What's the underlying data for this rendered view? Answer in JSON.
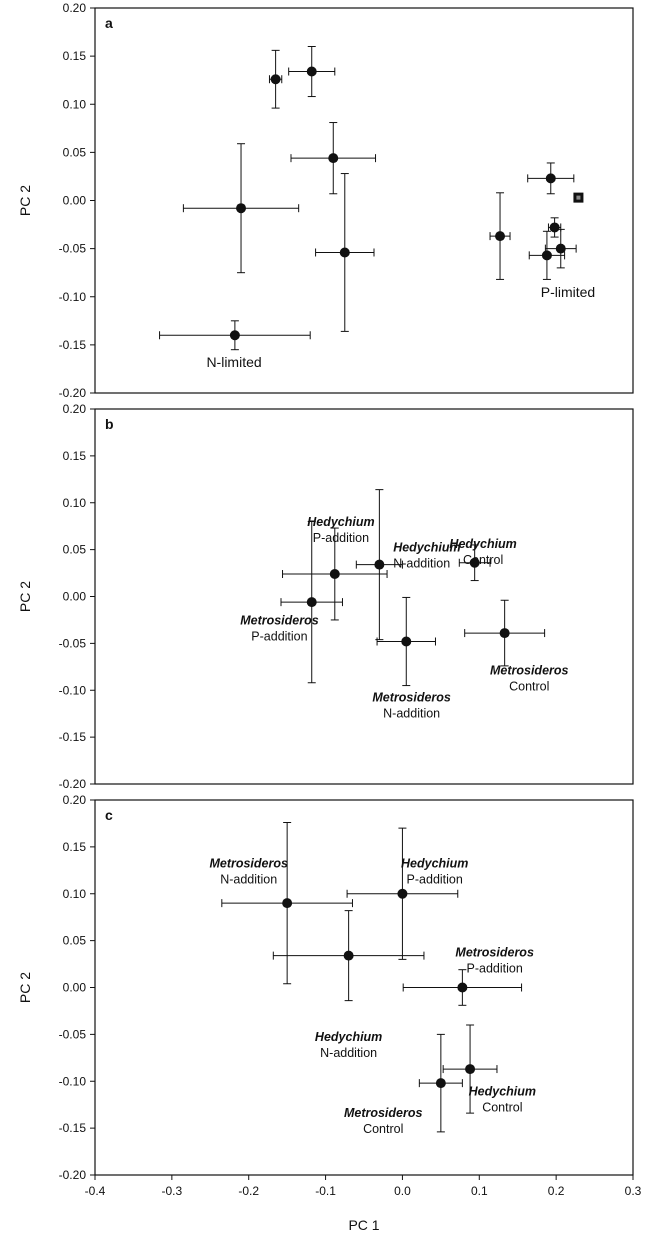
{
  "chart_data": [
    {
      "type": "scatter",
      "panel": "a",
      "xlim": [
        -0.4,
        0.3
      ],
      "ylim": [
        -0.2,
        0.2
      ],
      "yticks": [
        "0.20",
        "0.15",
        "0.10",
        "0.05",
        "0.00",
        "-0.05",
        "-0.10",
        "-0.15",
        "-0.20"
      ],
      "ylabel": "PC 2",
      "grid": false,
      "points": [
        {
          "x": -0.165,
          "y": 0.126,
          "xerr": 0.008,
          "yerr": 0.03
        },
        {
          "x": -0.118,
          "y": 0.134,
          "xerr": 0.03,
          "yerr": 0.026
        },
        {
          "x": -0.09,
          "y": 0.044,
          "xerr": 0.055,
          "yerr": 0.037
        },
        {
          "x": -0.21,
          "y": -0.008,
          "xerr": 0.075,
          "yerr": 0.067
        },
        {
          "x": -0.075,
          "y": -0.054,
          "xerr": 0.038,
          "yerr": 0.082
        },
        {
          "x": -0.218,
          "y": -0.14,
          "xerr": 0.098,
          "yerr": 0.015
        },
        {
          "x": 0.127,
          "y": -0.037,
          "xerr": 0.013,
          "yerr": 0.045
        },
        {
          "x": 0.193,
          "y": 0.023,
          "xerr": 0.03,
          "yerr": 0.016
        },
        {
          "x": 0.198,
          "y": -0.028,
          "xerr": 0.008,
          "yerr": 0.01
        },
        {
          "x": 0.188,
          "y": -0.057,
          "xerr": 0.023,
          "yerr": 0.025
        },
        {
          "x": 0.206,
          "y": -0.05,
          "xerr": 0.02,
          "yerr": 0.02
        },
        {
          "x": 0.229,
          "y": 0.003,
          "xerr": 0,
          "yerr": 0,
          "marker": "square"
        }
      ],
      "annotations": [
        {
          "text": "N-limited",
          "x": -0.255,
          "y": -0.173
        },
        {
          "text": "P-limited",
          "x": 0.18,
          "y": -0.1
        }
      ]
    },
    {
      "type": "scatter",
      "panel": "b",
      "xlim": [
        -0.4,
        0.3
      ],
      "ylim": [
        -0.2,
        0.2
      ],
      "yticks": [
        "0.20",
        "0.15",
        "0.10",
        "0.05",
        "0.00",
        "-0.05",
        "-0.10",
        "-0.15",
        "-0.20"
      ],
      "ylabel": "PC 2",
      "grid": false,
      "points": [
        {
          "x": -0.118,
          "y": -0.006,
          "xerr": 0.04,
          "yerr": 0.086
        },
        {
          "x": -0.088,
          "y": 0.024,
          "xerr": 0.068,
          "yerr": 0.049
        },
        {
          "x": -0.03,
          "y": 0.034,
          "xerr": 0.03,
          "yerr": 0.08
        },
        {
          "x": 0.094,
          "y": 0.036,
          "xerr": 0.02,
          "yerr": 0.019
        },
        {
          "x": 0.005,
          "y": -0.048,
          "xerr": 0.038,
          "yerr": 0.047
        },
        {
          "x": 0.133,
          "y": -0.039,
          "xerr": 0.052,
          "yerr": 0.035
        }
      ],
      "annotations": [
        {
          "species": "Hedychium",
          "treatment": "P-addition",
          "x": -0.08,
          "y": 0.075,
          "anchor": "middle"
        },
        {
          "species": "Hedychium",
          "treatment": "N-addition",
          "x": -0.012,
          "y": 0.048,
          "anchor": "start"
        },
        {
          "species": "Hedychium",
          "treatment": "Control",
          "x": 0.105,
          "y": 0.052,
          "anchor": "middle"
        },
        {
          "species": "Metrosideros",
          "treatment": "P-addition",
          "x": -0.16,
          "y": -0.03,
          "anchor": "middle"
        },
        {
          "species": "Metrosideros",
          "treatment": "N-addition",
          "x": 0.012,
          "y": -0.112,
          "anchor": "middle"
        },
        {
          "species": "Metrosideros",
          "treatment": "Control",
          "x": 0.165,
          "y": -0.083,
          "anchor": "middle"
        }
      ]
    },
    {
      "type": "scatter",
      "panel": "c",
      "xlim": [
        -0.4,
        0.3
      ],
      "ylim": [
        -0.2,
        0.2
      ],
      "xticks": [
        "-0.4",
        "-0.3",
        "-0.2",
        "-0.1",
        "0.0",
        "0.1",
        "0.2",
        "0.3"
      ],
      "yticks": [
        "0.20",
        "0.15",
        "0.10",
        "0.05",
        "0.00",
        "-0.05",
        "-0.10",
        "-0.15",
        "-0.20"
      ],
      "xlabel": "PC 1",
      "ylabel": "PC 2",
      "grid": false,
      "points": [
        {
          "x": -0.15,
          "y": 0.09,
          "xerr": 0.085,
          "yerr": 0.086
        },
        {
          "x": -0.07,
          "y": 0.034,
          "xerr": 0.098,
          "yerr": 0.048
        },
        {
          "x": 0.0,
          "y": 0.1,
          "xerr": 0.072,
          "yerr": 0.07
        },
        {
          "x": 0.078,
          "y": 0.0,
          "xerr": 0.077,
          "yerr": 0.019
        },
        {
          "x": 0.05,
          "y": -0.102,
          "xerr": 0.028,
          "yerr": 0.052
        },
        {
          "x": 0.088,
          "y": -0.087,
          "xerr": 0.035,
          "yerr": 0.047
        }
      ],
      "annotations": [
        {
          "species": "Metrosideros",
          "treatment": "N-addition",
          "x": -0.2,
          "y": 0.128,
          "anchor": "middle"
        },
        {
          "species": "Hedychium",
          "treatment": "P-addition",
          "x": 0.042,
          "y": 0.128,
          "anchor": "middle"
        },
        {
          "species": "Metrosideros",
          "treatment": "P-addition",
          "x": 0.12,
          "y": 0.033,
          "anchor": "middle"
        },
        {
          "species": "Hedychium",
          "treatment": "N-addition",
          "x": -0.07,
          "y": -0.057,
          "anchor": "middle"
        },
        {
          "species": "Hedychium",
          "treatment": "Control",
          "x": 0.13,
          "y": -0.115,
          "anchor": "middle"
        },
        {
          "species": "Metrosideros",
          "treatment": "Control",
          "x": -0.025,
          "y": -0.138,
          "anchor": "middle"
        }
      ]
    }
  ]
}
